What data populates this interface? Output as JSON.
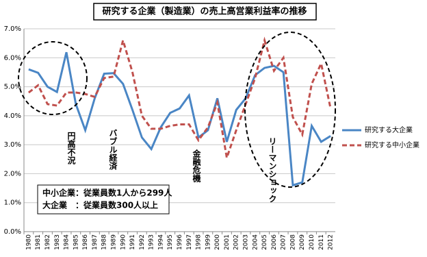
{
  "chart_data": {
    "type": "line",
    "title": "研究する企業（製造業）の売上高営業利益率の推移",
    "categories": [
      "1980",
      "1981",
      "1982",
      "1983",
      "1984",
      "1985",
      "1986",
      "1987",
      "1988",
      "1989",
      "1990",
      "1991",
      "1992",
      "1993",
      "1994",
      "1995",
      "1996",
      "1997",
      "1998",
      "1999",
      "2000",
      "2001",
      "2002",
      "2003",
      "2004",
      "2005",
      "2006",
      "2007",
      "2008",
      "2009",
      "2010",
      "2011",
      "2012"
    ],
    "series": [
      {
        "name": "研究する大企業",
        "color": "#4a86c5",
        "dash": "solid",
        "values": [
          5.6,
          5.48,
          5.0,
          4.82,
          6.19,
          4.4,
          3.5,
          4.6,
          5.45,
          5.47,
          5.1,
          4.2,
          3.25,
          2.85,
          3.6,
          4.1,
          4.25,
          4.7,
          3.25,
          3.5,
          4.6,
          3.1,
          4.2,
          4.6,
          5.4,
          5.65,
          5.72,
          5.5,
          1.6,
          1.7,
          3.65,
          3.1,
          3.3
        ]
      },
      {
        "name": "研究する中小企業",
        "color": "#c0504d",
        "dash": "dashed",
        "values": [
          4.8,
          5.05,
          4.4,
          4.35,
          4.8,
          4.8,
          4.75,
          4.65,
          5.3,
          5.35,
          6.6,
          5.5,
          4.0,
          3.55,
          3.55,
          3.65,
          3.7,
          3.7,
          3.15,
          3.6,
          4.45,
          2.55,
          3.5,
          4.4,
          5.3,
          6.6,
          5.55,
          6.0,
          3.95,
          3.35,
          5.1,
          5.8,
          4.25
        ]
      }
    ],
    "ylim": [
      0,
      7
    ],
    "yticks": [
      {
        "value": 0,
        "label": "0.0%"
      },
      {
        "value": 1,
        "label": "1.0%"
      },
      {
        "value": 2,
        "label": "2.0%"
      },
      {
        "value": 3,
        "label": "3.0%"
      },
      {
        "value": 4,
        "label": "4.0%"
      },
      {
        "value": 5,
        "label": "5.0%"
      },
      {
        "value": 6,
        "label": "6.0%"
      },
      {
        "value": 7,
        "label": "7.0%"
      }
    ],
    "grid": true,
    "legend": "right",
    "annotations": [
      "円高不況",
      "バブル経済",
      "金融危機",
      "リーマンショック"
    ],
    "note": [
      "中小企業：従業員数1人から299人",
      "大企業　：従業員数300人以上"
    ]
  }
}
